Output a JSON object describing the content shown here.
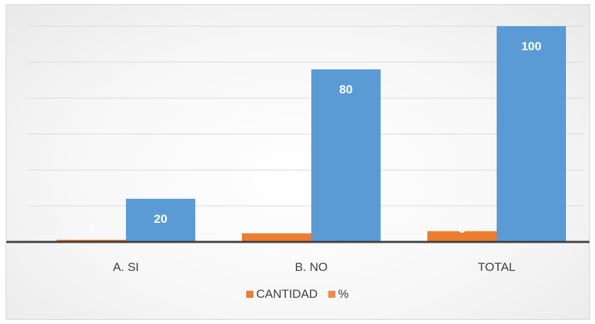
{
  "chart_data": {
    "type": "bar",
    "categories": [
      "A. SI",
      "B. NO",
      "TOTAL"
    ],
    "series": [
      {
        "name": "CANTIDAD",
        "values": [
          1,
          4,
          5
        ],
        "data_labels": [
          "1",
          "",
          "5"
        ],
        "color": "#ed7d31"
      },
      {
        "name": "%",
        "values": [
          20,
          80,
          100
        ],
        "data_labels": [
          "20",
          "80",
          "100"
        ],
        "color": "#5b9bd5"
      }
    ],
    "legend_swatch_colors": [
      "#ed7d31",
      "#f08a4b"
    ],
    "ylim": [
      0,
      100
    ],
    "grid": true,
    "legend_position": "bottom"
  }
}
